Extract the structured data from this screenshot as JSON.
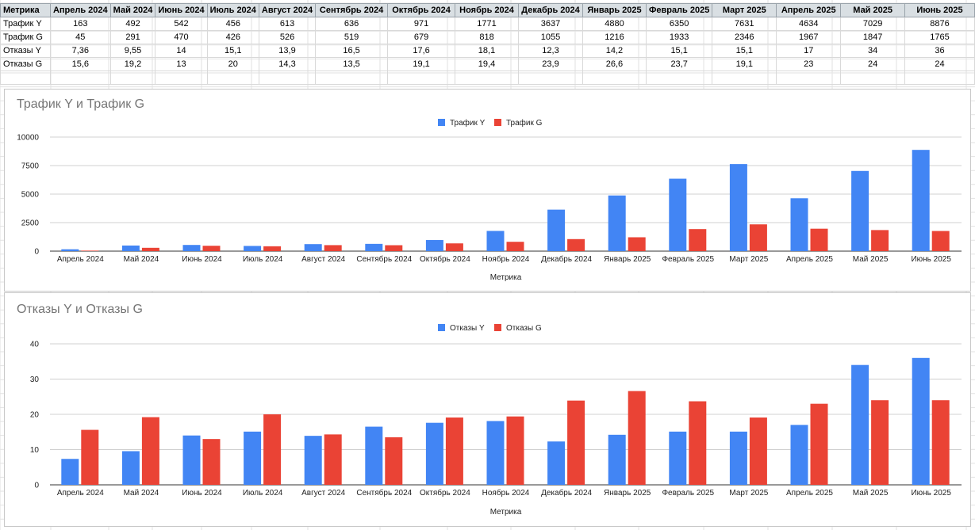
{
  "table": {
    "header": [
      "Метрика",
      "Апрель 2024",
      "Май 2024",
      "Июнь 2024",
      "Июль 2024",
      "Август 2024",
      "Сентябрь 2024",
      "Октябрь 2024",
      "Ноябрь 2024",
      "Декабрь 2024",
      "Январь 2025",
      "Февраль 2025",
      "Март 2025",
      "Апрель 2025",
      "Май 2025",
      "Июнь 2025"
    ],
    "rows": [
      [
        "Трафик Y",
        "163",
        "492",
        "542",
        "456",
        "613",
        "636",
        "971",
        "1771",
        "3637",
        "4880",
        "6350",
        "7631",
        "4634",
        "7029",
        "8876"
      ],
      [
        "Трафик G",
        "45",
        "291",
        "470",
        "426",
        "526",
        "519",
        "679",
        "818",
        "1055",
        "1216",
        "1933",
        "2346",
        "1967",
        "1847",
        "1765"
      ],
      [
        "Отказы Y",
        "7,36",
        "9,55",
        "14",
        "15,1",
        "13,9",
        "16,5",
        "17,6",
        "18,1",
        "12,3",
        "14,2",
        "15,1",
        "15,1",
        "17",
        "34",
        "36"
      ],
      [
        "Отказы G",
        "15,6",
        "19,2",
        "13",
        "20",
        "14,3",
        "13,5",
        "19,1",
        "19,4",
        "23,9",
        "26,6",
        "23,7",
        "19,1",
        "23",
        "24",
        "24"
      ]
    ]
  },
  "chart_data": [
    {
      "type": "bar",
      "title": "Трафик Y и Трафик G",
      "xlabel": "Метрика",
      "ylabel": "",
      "ylim": [
        0,
        10000
      ],
      "yticks": [
        "0",
        "2500",
        "5000",
        "7500",
        "10000"
      ],
      "legend": "top-center",
      "categories": [
        "Апрель 2024",
        "Май 2024",
        "Июнь 2024",
        "Июль 2024",
        "Август 2024",
        "Сентябрь 2024",
        "Октябрь 2024",
        "Ноябрь 2024",
        "Декабрь 2024",
        "Январь 2025",
        "Февраль 2025",
        "Март 2025",
        "Апрель 2025",
        "Май 2025",
        "Июнь 2025"
      ],
      "series": [
        {
          "name": "Трафик Y",
          "color": "#4285f4",
          "values": [
            163,
            492,
            542,
            456,
            613,
            636,
            971,
            1771,
            3637,
            4880,
            6350,
            7631,
            4634,
            7029,
            8876
          ]
        },
        {
          "name": "Трафик G",
          "color": "#ea4335",
          "values": [
            45,
            291,
            470,
            426,
            526,
            519,
            679,
            818,
            1055,
            1216,
            1933,
            2346,
            1967,
            1847,
            1765
          ]
        }
      ]
    },
    {
      "type": "bar",
      "title": "Отказы Y и Отказы G",
      "xlabel": "Метрика",
      "ylabel": "",
      "ylim": [
        0,
        40
      ],
      "yticks": [
        "0",
        "10",
        "20",
        "30",
        "40"
      ],
      "legend": "top-center",
      "categories": [
        "Апрель 2024",
        "Май 2024",
        "Июнь 2024",
        "Июль 2024",
        "Август 2024",
        "Сентябрь 2024",
        "Октябрь 2024",
        "Ноябрь 2024",
        "Декабрь 2024",
        "Январь 2025",
        "Февраль 2025",
        "Март 2025",
        "Апрель 2025",
        "Май 2025",
        "Июнь 2025"
      ],
      "series": [
        {
          "name": "Отказы Y",
          "color": "#4285f4",
          "values": [
            7.36,
            9.55,
            14,
            15.1,
            13.9,
            16.5,
            17.6,
            18.1,
            12.3,
            14.2,
            15.1,
            15.1,
            17,
            34,
            36
          ]
        },
        {
          "name": "Отказы G",
          "color": "#ea4335",
          "values": [
            15.6,
            19.2,
            13,
            20,
            14.3,
            13.5,
            19.1,
            19.4,
            23.9,
            26.6,
            23.7,
            19.1,
            23,
            24,
            24
          ]
        }
      ]
    }
  ]
}
